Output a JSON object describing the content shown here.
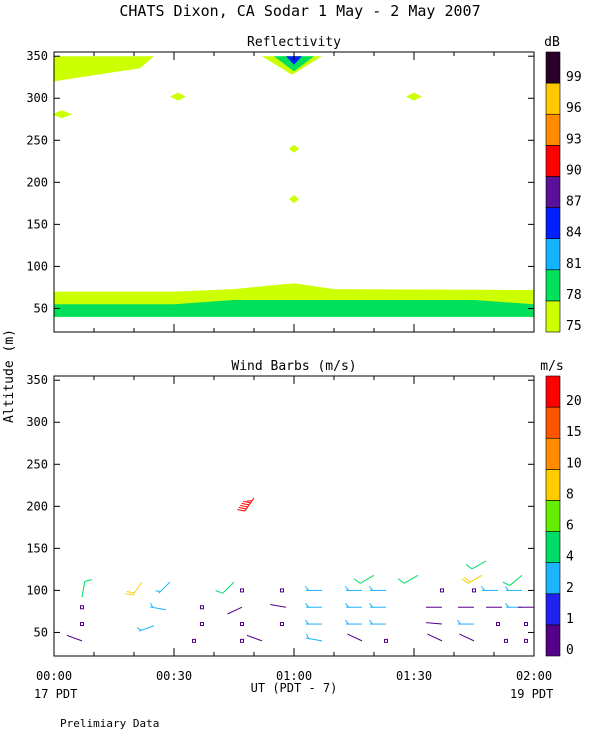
{
  "header": {
    "title": "CHATS Dixon, CA  Sodar    1 May -  2 May 2007",
    "footnote": "Prelimiary Data"
  },
  "shared_axes": {
    "ylabel": "Altitude (m)",
    "xlabel": "UT  (PDT - 7)",
    "x_start_note": "17 PDT",
    "x_end_note": "19 PDT"
  },
  "chart_data": [
    {
      "type": "heatmap",
      "title": "Reflectivity",
      "colorbar_unit": "dB",
      "colorbar_levels": [
        75,
        78,
        81,
        84,
        87,
        90,
        93,
        96,
        99
      ],
      "colorbar_colors": [
        "#ccff00",
        "#00e05a",
        "#14b4ff",
        "#0020ff",
        "#5a1098",
        "#ff0000",
        "#ff8c00",
        "#ffc800",
        "#2a002a"
      ],
      "x_ticks": [
        "00:00",
        "00:30",
        "01:00",
        "01:30",
        "02:00"
      ],
      "x_range": [
        "00:00",
        "02:00"
      ],
      "y_ticks": [
        50,
        100,
        150,
        200,
        250,
        300,
        350
      ],
      "ylim": [
        22,
        355
      ],
      "regions": [
        {
          "level": 75,
          "desc": "low layer",
          "x": [
            "00:00",
            "00:30",
            "00:45",
            "01:00",
            "01:10",
            "02:00"
          ],
          "y_top": [
            70,
            70,
            73,
            80,
            73,
            72
          ],
          "y_bottom": 40
        },
        {
          "level": 78,
          "desc": "core layer",
          "x": [
            "00:00",
            "00:30",
            "00:45",
            "01:00",
            "01:45",
            "02:00"
          ],
          "y_top": [
            55,
            55,
            60,
            60,
            60,
            55
          ],
          "y_bottom": 40
        },
        {
          "level": 75,
          "desc": "top-left patch",
          "x": [
            "00:00",
            "00:25"
          ],
          "y_top": 350,
          "y_bottom": 320
        },
        {
          "level": 75,
          "desc": "top-center plume",
          "x": [
            "00:52",
            "01:07"
          ],
          "y_top": 350,
          "y_bottom": 328
        },
        {
          "level": 78,
          "desc": "plume inner",
          "x": [
            "00:55",
            "01:05"
          ],
          "y_top": 350,
          "y_bottom": 332
        },
        {
          "level": 84,
          "desc": "plume core",
          "x": [
            "00:58",
            "01:02"
          ],
          "y_top": 350,
          "y_bottom": 340
        },
        {
          "level": 75,
          "desc": "blob",
          "x": [
            "00:31"
          ],
          "y": 302
        },
        {
          "level": 75,
          "desc": "blob",
          "x": [
            "01:30"
          ],
          "y": 302
        },
        {
          "level": 75,
          "desc": "blob",
          "x": [
            "00:02"
          ],
          "y": 281
        },
        {
          "level": 75,
          "desc": "blob",
          "x": [
            "01:00"
          ],
          "y": 240
        },
        {
          "level": 75,
          "desc": "blob",
          "x": [
            "01:00"
          ],
          "y": 180
        }
      ]
    },
    {
      "type": "scatter",
      "title": "Wind Barbs (m/s)",
      "colorbar_unit": "m/s",
      "colorbar_levels": [
        0,
        1,
        2,
        4,
        6,
        8,
        10,
        15,
        20
      ],
      "colorbar_colors": [
        "#550088",
        "#2222ee",
        "#1cb4ff",
        "#00dd66",
        "#66ee00",
        "#ffcc00",
        "#ff8c00",
        "#ff5500",
        "#ff0000"
      ],
      "x_ticks": [
        "00:00",
        "00:30",
        "01:00",
        "01:30",
        "02:00"
      ],
      "x_range": [
        "00:00",
        "02:00"
      ],
      "y_ticks": [
        50,
        100,
        150,
        200,
        250,
        300,
        350
      ],
      "ylim": [
        22,
        355
      ],
      "barbs": [
        {
          "t": 7,
          "z": 40,
          "speed": 0.8,
          "dir": 290
        },
        {
          "t": 7,
          "z": 60,
          "speed": 0.3,
          "dir": 0
        },
        {
          "t": 7,
          "z": 80,
          "speed": 0.3,
          "dir": 0
        },
        {
          "t": 7,
          "z": 92,
          "speed": 4.5,
          "dir": 10
        },
        {
          "t": 22,
          "z": 110,
          "speed": 8.5,
          "dir": 215
        },
        {
          "t": 25,
          "z": 58,
          "speed": 2.5,
          "dir": 250
        },
        {
          "t": 28,
          "z": 77,
          "speed": 2.5,
          "dir": 280
        },
        {
          "t": 29,
          "z": 110,
          "speed": 2.5,
          "dir": 225
        },
        {
          "t": 35,
          "z": 40,
          "speed": 0.3,
          "dir": 0
        },
        {
          "t": 37,
          "z": 60,
          "speed": 0.3,
          "dir": 0
        },
        {
          "t": 37,
          "z": 80,
          "speed": 0.3,
          "dir": 0
        },
        {
          "t": 45,
          "z": 110,
          "speed": 4.5,
          "dir": 225
        },
        {
          "t": 47,
          "z": 40,
          "speed": 0.3,
          "dir": 0
        },
        {
          "t": 47,
          "z": 60,
          "speed": 0.3,
          "dir": 0
        },
        {
          "t": 47,
          "z": 80,
          "speed": 0.8,
          "dir": 245
        },
        {
          "t": 47,
          "z": 100,
          "speed": 0.3,
          "dir": 0
        },
        {
          "t": 50,
          "z": 210,
          "speed": 22,
          "dir": 215
        },
        {
          "t": 52,
          "z": 40,
          "speed": 0.8,
          "dir": 290
        },
        {
          "t": 57,
          "z": 100,
          "speed": 0.3,
          "dir": 0
        },
        {
          "t": 57,
          "z": 60,
          "speed": 0.3,
          "dir": 0
        },
        {
          "t": 58,
          "z": 80,
          "speed": 0.8,
          "dir": 280
        },
        {
          "t": 67,
          "z": 40,
          "speed": 2.5,
          "dir": 280
        },
        {
          "t": 67,
          "z": 60,
          "speed": 2.5,
          "dir": 270
        },
        {
          "t": 67,
          "z": 80,
          "speed": 2.5,
          "dir": 270
        },
        {
          "t": 67,
          "z": 100,
          "speed": 2.5,
          "dir": 270
        },
        {
          "t": 77,
          "z": 40,
          "speed": 0.8,
          "dir": 295
        },
        {
          "t": 77,
          "z": 60,
          "speed": 2.5,
          "dir": 270
        },
        {
          "t": 77,
          "z": 80,
          "speed": 2.5,
          "dir": 270
        },
        {
          "t": 77,
          "z": 100,
          "speed": 2.5,
          "dir": 270
        },
        {
          "t": 80,
          "z": 118,
          "speed": 5,
          "dir": 240
        },
        {
          "t": 83,
          "z": 40,
          "speed": 0.3,
          "dir": 0
        },
        {
          "t": 83,
          "z": 60,
          "speed": 2.5,
          "dir": 270
        },
        {
          "t": 83,
          "z": 80,
          "speed": 2.5,
          "dir": 270
        },
        {
          "t": 83,
          "z": 100,
          "speed": 2.5,
          "dir": 270
        },
        {
          "t": 91,
          "z": 118,
          "speed": 5,
          "dir": 240
        },
        {
          "t": 97,
          "z": 40,
          "speed": 0.8,
          "dir": 295
        },
        {
          "t": 97,
          "z": 60,
          "speed": 0.8,
          "dir": 275
        },
        {
          "t": 97,
          "z": 80,
          "speed": 0.8,
          "dir": 270
        },
        {
          "t": 97,
          "z": 100,
          "speed": 0.3,
          "dir": 0
        },
        {
          "t": 105,
          "z": 40,
          "speed": 0.8,
          "dir": 295
        },
        {
          "t": 105,
          "z": 60,
          "speed": 2.5,
          "dir": 270
        },
        {
          "t": 105,
          "z": 80,
          "speed": 0.8,
          "dir": 270
        },
        {
          "t": 105,
          "z": 100,
          "speed": 0.3,
          "dir": 0
        },
        {
          "t": 107,
          "z": 118,
          "speed": 9,
          "dir": 240
        },
        {
          "t": 108,
          "z": 135,
          "speed": 5,
          "dir": 240
        },
        {
          "t": 111,
          "z": 60,
          "speed": 0.3,
          "dir": 0
        },
        {
          "t": 111,
          "z": 100,
          "speed": 2.5,
          "dir": 270
        },
        {
          "t": 112,
          "z": 80,
          "speed": 0.8,
          "dir": 270
        },
        {
          "t": 113,
          "z": 40,
          "speed": 0.3,
          "dir": 0
        },
        {
          "t": 117,
          "z": 118,
          "speed": 5,
          "dir": 230
        },
        {
          "t": 117,
          "z": 100,
          "speed": 2.5,
          "dir": 270
        },
        {
          "t": 117,
          "z": 80,
          "speed": 2.5,
          "dir": 270
        },
        {
          "t": 118,
          "z": 40,
          "speed": 0.3,
          "dir": 0
        },
        {
          "t": 118,
          "z": 60,
          "speed": 0.3,
          "dir": 0
        },
        {
          "t": 120,
          "z": 80,
          "speed": 0.8,
          "dir": 270
        }
      ]
    }
  ]
}
